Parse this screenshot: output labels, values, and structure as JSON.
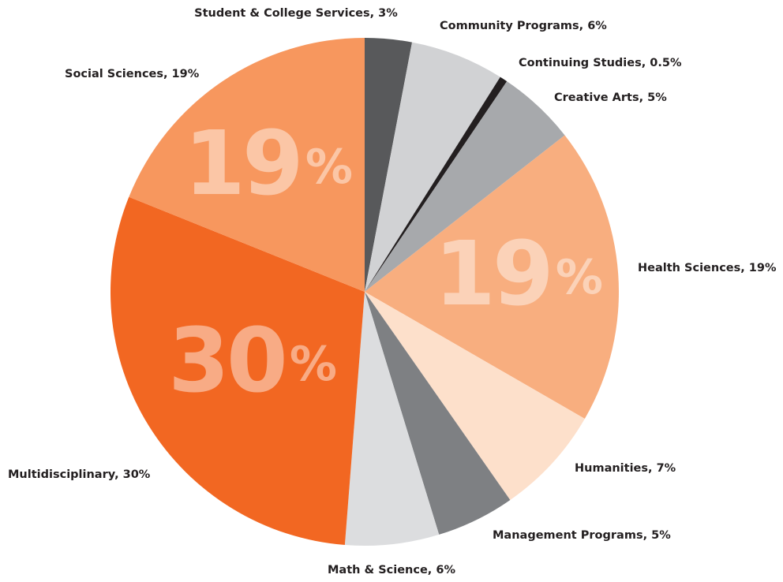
{
  "chart_data": {
    "type": "pie",
    "labels": [
      "Student & College Services, 3%",
      "Community Programs, 6%",
      "Continuing Studies, 0.5%",
      "Creative Arts, 5%",
      "Health Sciences, 19%",
      "Humanities, 7%",
      "Management Programs, 5%",
      "Math & Science, 6%",
      "Multidisciplinary, 30%",
      "Social Sciences, 19%"
    ],
    "values": [
      3,
      6,
      0.5,
      5,
      19,
      7,
      5,
      6,
      30,
      19
    ],
    "value_labels": [
      null,
      null,
      null,
      null,
      "19%",
      null,
      null,
      null,
      "30%",
      "19%"
    ],
    "colors": [
      "#58595b",
      "#d1d2d4",
      "#231f20",
      "#a7a9ac",
      "#f8ae7f",
      "#fde0cb",
      "#7e8083",
      "#dcdddf",
      "#f26722",
      "#f7975e"
    ]
  }
}
